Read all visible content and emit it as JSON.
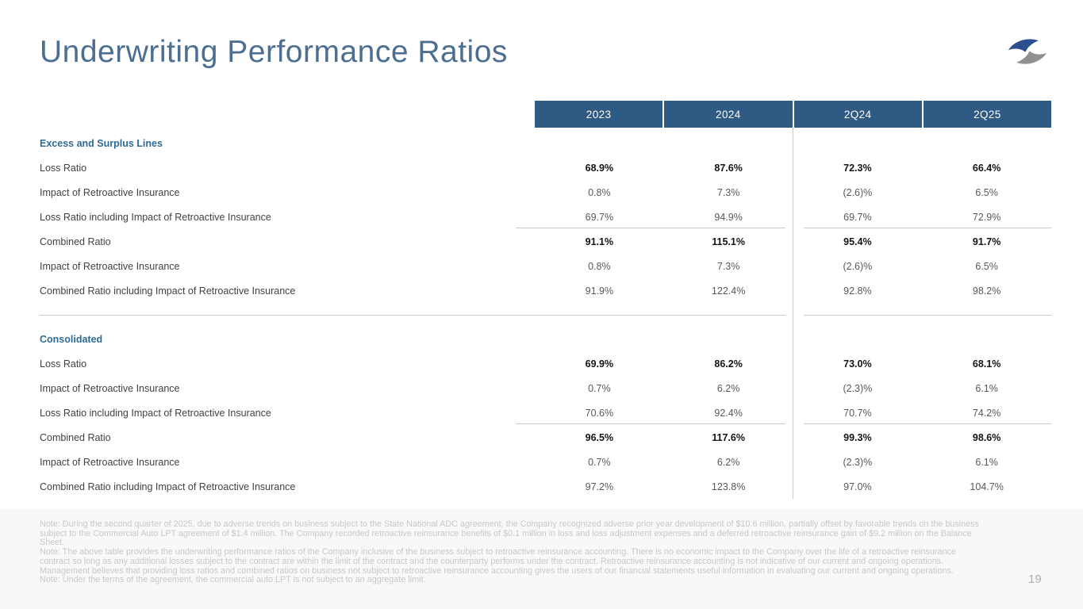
{
  "page": {
    "title": "Underwriting Performance Ratios",
    "page_number": "19"
  },
  "table": {
    "columns": [
      "2023",
      "2024",
      "2Q24",
      "2Q25"
    ],
    "sections": [
      {
        "name": "Excess and Surplus Lines",
        "rows": [
          {
            "label": "Loss Ratio",
            "bold": true,
            "underline": false,
            "values": [
              "68.9%",
              "87.6%",
              "72.3%",
              "66.4%"
            ]
          },
          {
            "label": "Impact of Retroactive Insurance",
            "bold": false,
            "underline": false,
            "values": [
              "0.8%",
              "7.3%",
              "(2.6)%",
              "6.5%"
            ]
          },
          {
            "label": "Loss Ratio including Impact of Retroactive Insurance",
            "bold": false,
            "underline": true,
            "values": [
              "69.7%",
              "94.9%",
              "69.7%",
              "72.9%"
            ]
          },
          {
            "label": "Combined Ratio",
            "bold": true,
            "underline": false,
            "values": [
              "91.1%",
              "115.1%",
              "95.4%",
              "91.7%"
            ]
          },
          {
            "label": "Impact of Retroactive Insurance",
            "bold": false,
            "underline": false,
            "values": [
              "0.8%",
              "7.3%",
              "(2.6)%",
              "6.5%"
            ]
          },
          {
            "label": "Combined Ratio including Impact of Retroactive Insurance",
            "bold": false,
            "underline": false,
            "values": [
              "91.9%",
              "122.4%",
              "92.8%",
              "98.2%"
            ]
          }
        ]
      },
      {
        "name": "Consolidated",
        "rows": [
          {
            "label": "Loss Ratio",
            "bold": true,
            "underline": false,
            "values": [
              "69.9%",
              "86.2%",
              "73.0%",
              "68.1%"
            ]
          },
          {
            "label": "Impact of Retroactive Insurance",
            "bold": false,
            "underline": false,
            "values": [
              "0.7%",
              "6.2%",
              "(2.3)%",
              "6.1%"
            ]
          },
          {
            "label": "Loss Ratio including Impact of Retroactive Insurance",
            "bold": false,
            "underline": true,
            "values": [
              "70.6%",
              "92.4%",
              "70.7%",
              "74.2%"
            ]
          },
          {
            "label": "Combined Ratio",
            "bold": true,
            "underline": false,
            "values": [
              "96.5%",
              "117.6%",
              "99.3%",
              "98.6%"
            ]
          },
          {
            "label": "Impact of Retroactive Insurance",
            "bold": false,
            "underline": false,
            "values": [
              "0.7%",
              "6.2%",
              "(2.3)%",
              "6.1%"
            ]
          },
          {
            "label": "Combined Ratio including Impact of Retroactive Insurance",
            "bold": false,
            "underline": false,
            "values": [
              "97.2%",
              "123.8%",
              "97.0%",
              "104.7%"
            ]
          }
        ]
      }
    ]
  },
  "footnotes": [
    "Note: During the second quarter of 2025, due to adverse trends on business subject to the State National ADC agreement, the Company recognized adverse prior year development of $10.6 million, partially offset by favorable trends on the business subject to the Commercial Auto LPT agreement of $1.4 million. The Company recorded retroactive reinsurance benefits of $0.1 million in loss and loss adjustment expenses and a deferred retroactive reinsurance gain of $9.2 million on the Balance Sheet.",
    "Note: The above table provides the underwriting performance ratios of the Company inclusive of the business subject to retroactive reinsurance accounting. There is no economic impact to the Company over the life of a retroactive reinsurance contract so long as any additional losses subject to the contract are within the limit of the contract and the counterparty performs under the contract. Retroactive reinsurance accounting is not indicative of our current and ongoing operations. Management believes that providing loss ratios and combined ratios on business not subject to retroactive reinsurance accounting gives the users of our financial statements useful information in evaluating our current and ongoing operations.",
    "Note: Under the terms of the agreement, the commercial auto LPT is not subject to an aggregate limit."
  ],
  "colors": {
    "header_bg": "#2f5a83",
    "title": "#4b6e91",
    "section": "#2f6b94",
    "label": "#3f4245",
    "value": "#56585a",
    "value_bold": "#141414",
    "footnote": "#c7c9ca",
    "line": "#c9cbce",
    "divider": "#c9cdd5",
    "page_number": "#aaacae",
    "logo_blue": "#2d4e8c",
    "logo_gray": "#8e9092",
    "footer_bg": "#f7f8f8"
  }
}
